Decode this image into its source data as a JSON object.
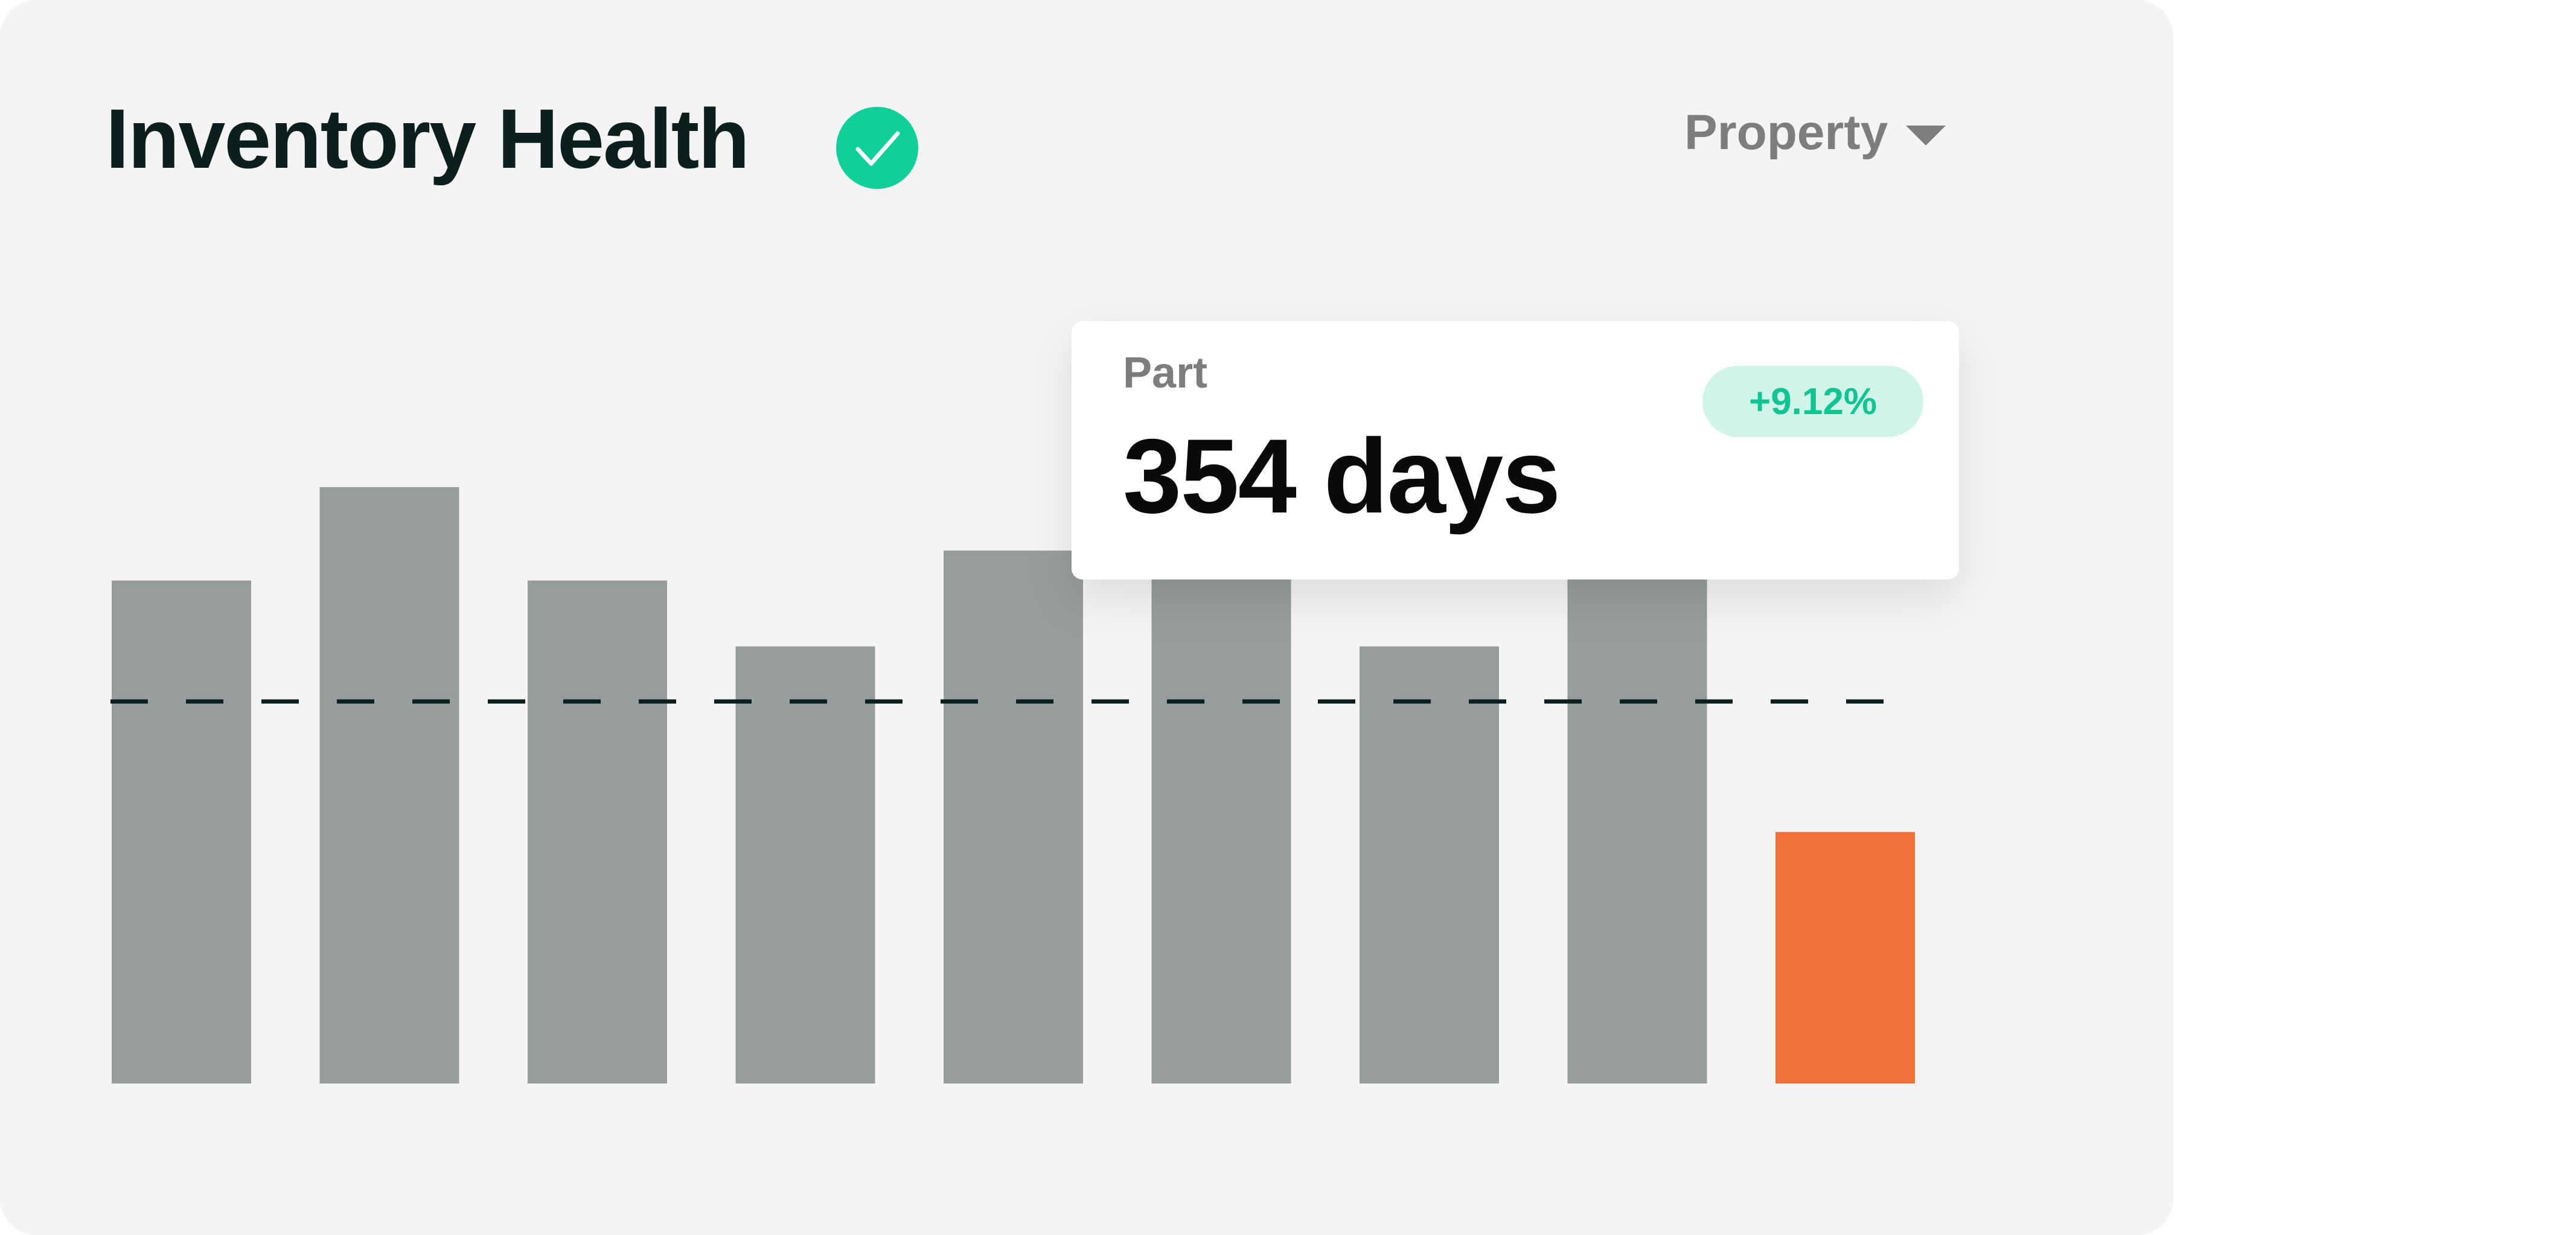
{
  "header": {
    "title": "Inventory Health",
    "status_icon": "check-circle-icon",
    "dropdown_label": "Property",
    "dropdown_icon": "caret-down-icon"
  },
  "tooltip": {
    "label": "Part",
    "value": "354 days",
    "delta": "+9.12%"
  },
  "colors": {
    "bar": "#959d9d",
    "highlight_bar": "#f0713a",
    "reference_line": "#0c1e1e",
    "positive": "#12c493",
    "badge": "#0fcf9c"
  },
  "chart_data": {
    "type": "bar",
    "title": "Inventory Health",
    "xlabel": "",
    "ylabel": "",
    "ylim": [
      0,
      110
    ],
    "grid": false,
    "categories": [
      "",
      "",
      "",
      "",
      "",
      "",
      "",
      "",
      ""
    ],
    "values": [
      84,
      99.6,
      84,
      73,
      89,
      86,
      73,
      86,
      42
    ],
    "highlight_index": 8,
    "reference_line": 63.8
  }
}
